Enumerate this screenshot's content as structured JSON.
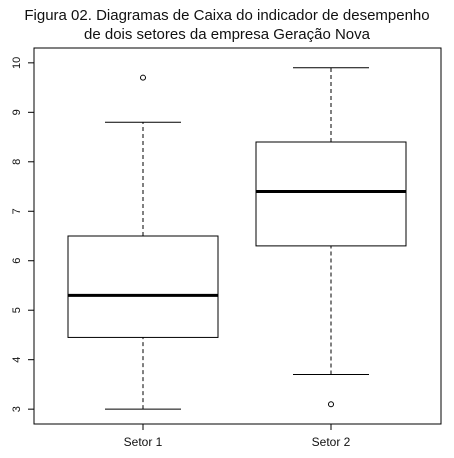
{
  "chart_data": {
    "type": "boxplot",
    "title_lines": [
      "Figura 02. Diagramas de Caixa do indicador de desempenho",
      "de dois setores da empresa Geração Nova"
    ],
    "xlabel": "",
    "ylabel": "",
    "ylim": [
      2.7,
      10.3
    ],
    "yticks": [
      "3",
      "4",
      "5",
      "6",
      "7",
      "8",
      "9",
      "10"
    ],
    "categories": [
      "Setor 1",
      "Setor 2"
    ],
    "grid": false,
    "boxes": [
      {
        "min": 3.0,
        "q1": 4.45,
        "median": 5.3,
        "q3": 6.5,
        "max": 8.8,
        "outliers": [
          9.7
        ]
      },
      {
        "min": 3.7,
        "q1": 6.3,
        "median": 7.4,
        "q3": 8.4,
        "max": 9.9,
        "outliers": [
          3.1
        ]
      }
    ]
  }
}
